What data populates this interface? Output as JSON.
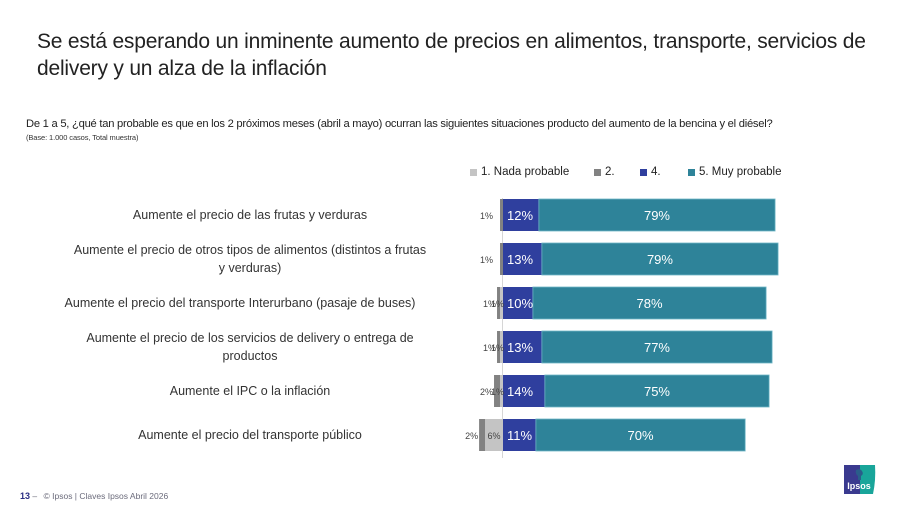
{
  "slide": {
    "title": "Se está esperando un inminente aumento de precios en alimentos, transporte, servicios de delivery y un alza de la inflación",
    "question": "De 1 a 5, ¿qué tan probable es que en los 2 próximos meses (abril a mayo) ocurran las siguientes situaciones producto del aumento de la bencina y el diésel?",
    "base": "(Base: 1.000 casos, Total muestra)",
    "footer": {
      "page_number": "13",
      "separator": "–",
      "text": "© Ipsos | Claves Ipsos Abril 2026"
    },
    "logo_text": "Ipsos"
  },
  "chart_data": {
    "type": "bar",
    "orientation": "horizontal",
    "stacked": "diverging",
    "title": "",
    "xlabel": "",
    "ylabel": "",
    "grid": false,
    "legend_position": "top",
    "categories": [
      "Aumente el precio de las frutas y verduras",
      "Aumente el precio de otros tipos de alimentos (distintos a frutas y verduras)",
      "Aumente el precio del transporte Interurbano (pasaje de buses)",
      "Aumente el precio de los servicios de delivery o entrega de productos",
      "Aumente el IPC o la inflación",
      "Aumente el precio del transporte público"
    ],
    "series": [
      {
        "name": "1. Nada probable",
        "color": "#c4c4c4",
        "side": "negative",
        "values": [
          0,
          0,
          1,
          1,
          1,
          6
        ]
      },
      {
        "name": "2.",
        "color": "#828282",
        "side": "negative",
        "values": [
          1,
          1,
          1,
          1,
          2,
          2
        ]
      },
      {
        "name": "4.",
        "color": "#2f3f9e",
        "side": "positive",
        "values": [
          12,
          13,
          10,
          13,
          14,
          11
        ]
      },
      {
        "name": "5. Muy probable",
        "color": "#2e8399",
        "side": "positive",
        "values": [
          79,
          79,
          78,
          77,
          75,
          70
        ]
      }
    ],
    "value_labels": [
      {
        "left": [
          "1%"
        ],
        "four": "12%",
        "five": "79%"
      },
      {
        "left": [
          "1%"
        ],
        "four": "13%",
        "five": "79%"
      },
      {
        "left": [
          "1%",
          "1%"
        ],
        "four": "10%",
        "five": "78%"
      },
      {
        "left": [
          "1%",
          "1%"
        ],
        "four": "13%",
        "five": "77%"
      },
      {
        "left": [
          "2%",
          "1%"
        ],
        "four": "14%",
        "five": "75%"
      },
      {
        "left": [
          "2%",
          "6%"
        ],
        "four": "11%",
        "five": "70%"
      }
    ],
    "unit": "%"
  }
}
